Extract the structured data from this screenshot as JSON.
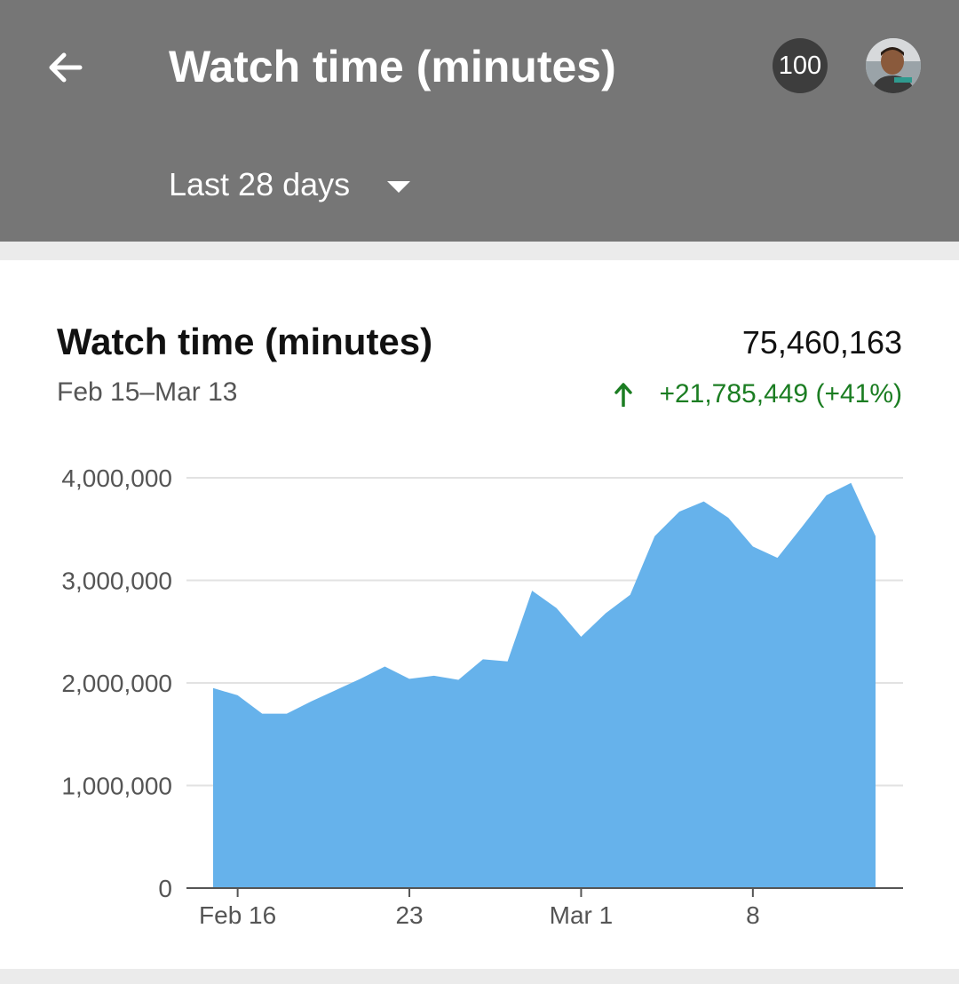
{
  "header": {
    "title": "Watch time (minutes)",
    "notification_count": "100",
    "date_range_label": "Last 28 days",
    "back_icon": "arrow-left-icon",
    "dropdown_icon": "caret-down-icon"
  },
  "card": {
    "title": "Watch time (minutes)",
    "date_range": "Feb 15–Mar 13",
    "total": "75,460,163",
    "change": "+21,785,449 (+41%)",
    "change_icon": "arrow-up-icon",
    "change_color": "#1b7d22"
  },
  "colors": {
    "appbar": "#767676",
    "area_fill": "#66b2eb",
    "badge": "#3d3d3d"
  },
  "chart_data": {
    "type": "area",
    "x": [
      "Feb 15",
      "Feb 16",
      "Feb 17",
      "Feb 18",
      "Feb 19",
      "Feb 20",
      "Feb 21",
      "Feb 22",
      "Feb 23",
      "Feb 24",
      "Feb 25",
      "Feb 26",
      "Feb 27",
      "Feb 28",
      "Feb 29",
      "Mar 1",
      "Mar 2",
      "Mar 3",
      "Mar 4",
      "Mar 5",
      "Mar 6",
      "Mar 7",
      "Mar 8",
      "Mar 9",
      "Mar 10",
      "Mar 11",
      "Mar 12",
      "Mar 13"
    ],
    "values": [
      1950000,
      1880000,
      1700000,
      1700000,
      1820000,
      1930000,
      2040000,
      2160000,
      2040000,
      2070000,
      2030000,
      2230000,
      2210000,
      2900000,
      2730000,
      2450000,
      2680000,
      2860000,
      3430000,
      3670000,
      3770000,
      3610000,
      3330000,
      3220000,
      3520000,
      3830000,
      3950000,
      3430000
    ],
    "y_ticks": [
      0,
      1000000,
      2000000,
      3000000,
      4000000
    ],
    "y_tick_labels": [
      "0",
      "1,000,000",
      "2,000,000",
      "3,000,000",
      "4,000,000"
    ],
    "x_tick_labels": [
      {
        "label": "Feb 16",
        "index": 1
      },
      {
        "label": "23",
        "index": 8
      },
      {
        "label": "Mar 1",
        "index": 15
      },
      {
        "label": "8",
        "index": 22
      }
    ],
    "ylim": [
      0,
      4000000
    ],
    "grid": true,
    "title": "",
    "xlabel": "",
    "ylabel": ""
  }
}
